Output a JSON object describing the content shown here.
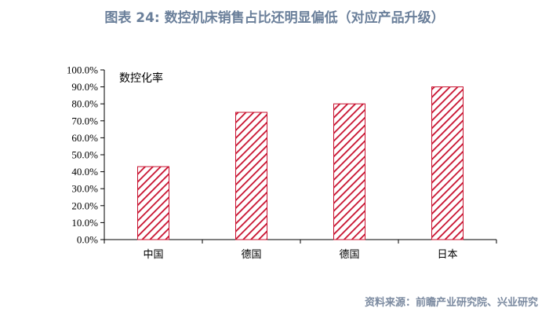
{
  "header": {
    "title": "图表 24: 数控机床销售占比还明显偏低（对应产品升级）"
  },
  "footer": {
    "source": "资料来源：前瞻产业研究院、兴业研究"
  },
  "chart_data": {
    "type": "bar",
    "categories": [
      "中国",
      "德国",
      "德国",
      "日本"
    ],
    "series": [
      {
        "name": "数控化率",
        "values": [
          43.0,
          75.0,
          80.0,
          90.0
        ]
      }
    ],
    "ylim": [
      0,
      100
    ],
    "yticks": [
      "0.0%",
      "10.0%",
      "20.0%",
      "30.0%",
      "40.0%",
      "50.0%",
      "60.0%",
      "70.0%",
      "80.0%",
      "90.0%",
      "100.0%"
    ],
    "xlabel": "",
    "ylabel": "",
    "legend_position": "top-left",
    "grid": false,
    "colors": {
      "bar": "#c8102e",
      "fill_pattern": "diagonal-hatch"
    }
  }
}
